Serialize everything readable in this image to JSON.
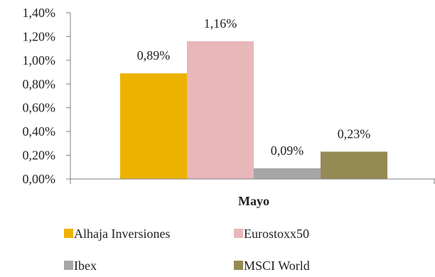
{
  "chart_data": {
    "type": "bar",
    "title": "",
    "xlabel": "Mayo",
    "ylabel": "",
    "categories": [
      "Mayo"
    ],
    "ylim": [
      0,
      1.4
    ],
    "ytick_step": 0.2,
    "ytick_labels": [
      "0,00%",
      "0,20%",
      "0,40%",
      "0,60%",
      "0,80%",
      "1,00%",
      "1,20%",
      "1,40%"
    ],
    "grid": false,
    "legend_position": "bottom",
    "series": [
      {
        "name": "Alhaja Inversiones",
        "values": [
          0.89
        ],
        "label": "0,89%",
        "color": "#EDB200"
      },
      {
        "name": "Eurostoxx50",
        "values": [
          1.16
        ],
        "label": "1,16%",
        "color": "#E8B7B9"
      },
      {
        "name": "Ibex",
        "values": [
          0.09
        ],
        "label": "0,09%",
        "color": "#A6A6A6"
      },
      {
        "name": "MSCI World",
        "values": [
          0.23
        ],
        "label": "0,23%",
        "color": "#948A54"
      }
    ]
  }
}
